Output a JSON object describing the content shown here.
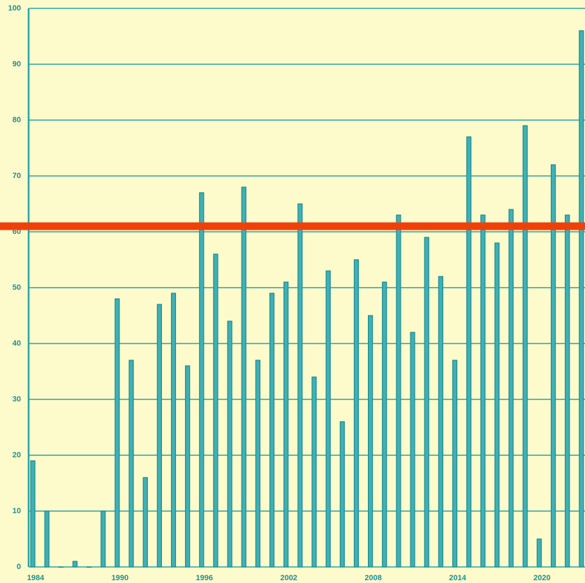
{
  "chart_data": {
    "type": "bar",
    "categories": [
      "1984",
      null,
      null,
      null,
      null,
      null,
      "1990",
      null,
      null,
      null,
      null,
      null,
      "1996",
      null,
      null,
      null,
      null,
      null,
      "2002",
      null,
      null,
      null,
      null,
      null,
      "2008",
      null,
      null,
      null,
      null,
      null,
      "2014",
      null,
      null,
      null,
      null,
      null,
      "2020",
      null,
      null,
      null
    ],
    "values": [
      19,
      10,
      0,
      1,
      0,
      10,
      48,
      37,
      16,
      47,
      49,
      36,
      67,
      56,
      44,
      68,
      37,
      49,
      51,
      65,
      34,
      53,
      26,
      55,
      45,
      51,
      63,
      42,
      59,
      52,
      37,
      77,
      63,
      58,
      64,
      79,
      5,
      72,
      63,
      96
    ],
    "color": "#3fb0b6",
    "ylim": [
      0,
      100
    ],
    "yticks": [
      0,
      10,
      20,
      30,
      40,
      50,
      60,
      70,
      80,
      90,
      100
    ],
    "grid": true,
    "reference_line": {
      "value": 61,
      "color": "#f0400a"
    }
  }
}
